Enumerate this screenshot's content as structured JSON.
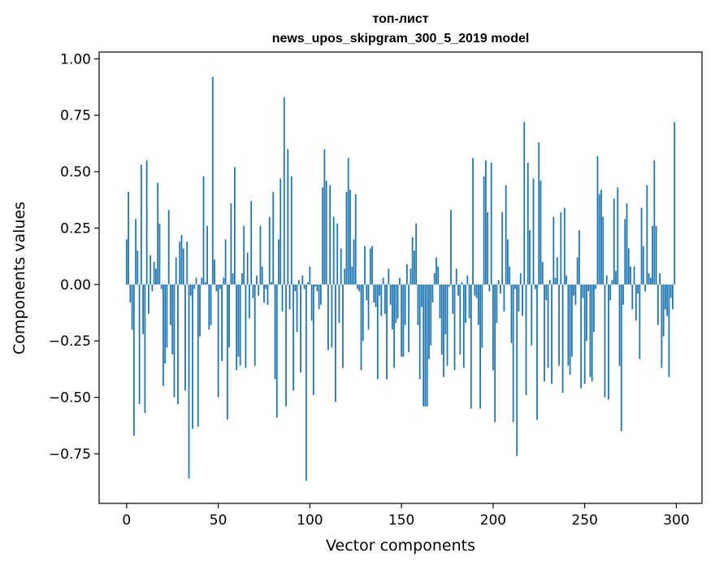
{
  "chart_data": {
    "type": "bar",
    "title_lines": [
      "топ-лист",
      "news_upos_skipgram_300_5_2019 model"
    ],
    "xlabel": "Vector components",
    "ylabel": "Components values",
    "xlim": [
      -15,
      314
    ],
    "ylim": [
      -0.97,
      1.03
    ],
    "xticks": [
      0,
      50,
      100,
      150,
      200,
      250,
      300
    ],
    "yticks": [
      -0.75,
      -0.5,
      -0.25,
      0.0,
      0.25,
      0.5,
      0.75,
      1.0
    ],
    "ytick_labels": [
      "−0.75",
      "−0.50",
      "−0.25",
      "0.00",
      "0.25",
      "0.50",
      "0.75",
      "1.00"
    ],
    "bar_color": "#1f77b4",
    "series": [
      {
        "name": "components",
        "x_start": 0,
        "values": [
          0.2,
          0.41,
          -0.08,
          -0.2,
          -0.67,
          0.29,
          0.15,
          -0.53,
          0.53,
          -0.22,
          -0.57,
          0.55,
          -0.13,
          0.13,
          -0.03,
          0.1,
          0.07,
          0.45,
          0.27,
          -0.02,
          -0.45,
          -0.35,
          -0.28,
          0.33,
          -0.18,
          -0.31,
          -0.5,
          0.12,
          -0.53,
          0.19,
          0.22,
          0.16,
          -0.47,
          0.19,
          -0.86,
          -0.05,
          -0.64,
          -0.02,
          0.03,
          -0.63,
          -0.23,
          0.03,
          0.48,
          0.01,
          0.26,
          -0.2,
          -0.18,
          0.92,
          0.11,
          -0.03,
          -0.5,
          -0.02,
          -0.34,
          0.03,
          0.2,
          -0.6,
          -0.28,
          0.36,
          0.05,
          0.52,
          -0.38,
          -0.32,
          -0.36,
          0.05,
          0.26,
          -0.37,
          0.14,
          -0.15,
          0.37,
          -0.06,
          -0.36,
          0.04,
          -0.05,
          0.26,
          0.08,
          -0.08,
          -0.02,
          -0.09,
          0.3,
          0.01,
          0.41,
          -0.42,
          -0.59,
          0.2,
          0.47,
          -0.12,
          0.83,
          -0.54,
          0.6,
          -0.11,
          0.48,
          -0.47,
          -0.03,
          -0.21,
          0.02,
          -0.39,
          0.04,
          -0.02,
          -0.87,
          0.01,
          0.08,
          -0.16,
          -0.49,
          -0.01,
          -0.03,
          -0.11,
          -0.09,
          0.43,
          0.6,
          0.46,
          -0.29,
          0.44,
          -0.28,
          0.3,
          -0.52,
          0.27,
          -0.17,
          0.16,
          -0.37,
          0.07,
          0.41,
          0.56,
          0.42,
          0.08,
          0.2,
          0.4,
          -0.02,
          -0.03,
          -0.38,
          -0.25,
          0.17,
          -0.07,
          -0.2,
          0.16,
          0.17,
          -0.08,
          -0.1,
          -0.42,
          -0.05,
          -0.14,
          0.03,
          -0.13,
          -0.42,
          0.07,
          -0.09,
          -0.2,
          -0.37,
          -0.17,
          -0.15,
          0.03,
          -0.32,
          -0.32,
          -0.18,
          0.09,
          -0.3,
          0.07,
          0.21,
          0.15,
          0.27,
          -0.18,
          -0.42,
          -0.1,
          -0.54,
          -0.54,
          -0.54,
          -0.33,
          -0.27,
          -0.08,
          0.05,
          0.12,
          0.08,
          -0.15,
          -0.31,
          -0.41,
          -0.22,
          -0.36,
          -0.01,
          0.33,
          -0.13,
          -0.38,
          0.07,
          -0.05,
          -0.31,
          0.01,
          -0.37,
          -0.17,
          0.04,
          -0.15,
          -0.55,
          0.56,
          -0.05,
          -0.06,
          -0.18,
          -0.55,
          -0.28,
          0.48,
          0.55,
          0.32,
          -0.03,
          0.54,
          -0.38,
          -0.61,
          -0.17,
          0.02,
          -0.04,
          0.32,
          -0.12,
          0.44,
          0.2,
          0.08,
          -0.26,
          -0.61,
          -0.02,
          -0.76,
          -0.12,
          0.05,
          -0.14,
          0.72,
          -0.49,
          0.54,
          0.24,
          -0.27,
          0.47,
          -0.02,
          -0.6,
          0.63,
          0.46,
          0.1,
          -0.43,
          -0.07,
          -0.37,
          0.02,
          -0.44,
          0.3,
          0.03,
          0.12,
          -0.36,
          0.32,
          -0.48,
          0.34,
          0.04,
          -0.36,
          -0.4,
          -0.32,
          -0.05,
          -0.09,
          0.12,
          0.24,
          -0.46,
          -0.06,
          -0.44,
          -0.25,
          -0.03,
          -0.41,
          -0.43,
          -0.21,
          -0.02,
          0.57,
          0.4,
          0.42,
          0.3,
          -0.5,
          0.04,
          -0.51,
          -0.07,
          0.02,
          0.38,
          0.06,
          0.43,
          -0.36,
          -0.65,
          -0.09,
          0.29,
          0.36,
          0.16,
          0.08,
          -0.11,
          0.08,
          -0.16,
          -0.04,
          -0.33,
          0.34,
          0.17,
          -0.03,
          0.44,
          0.05,
          0.03,
          0.26,
          0.55,
          0.26,
          -0.18,
          0.05,
          -0.37,
          -0.23,
          -0.11,
          -0.14,
          -0.41,
          -0.06,
          -0.11,
          0.72
        ]
      }
    ]
  }
}
